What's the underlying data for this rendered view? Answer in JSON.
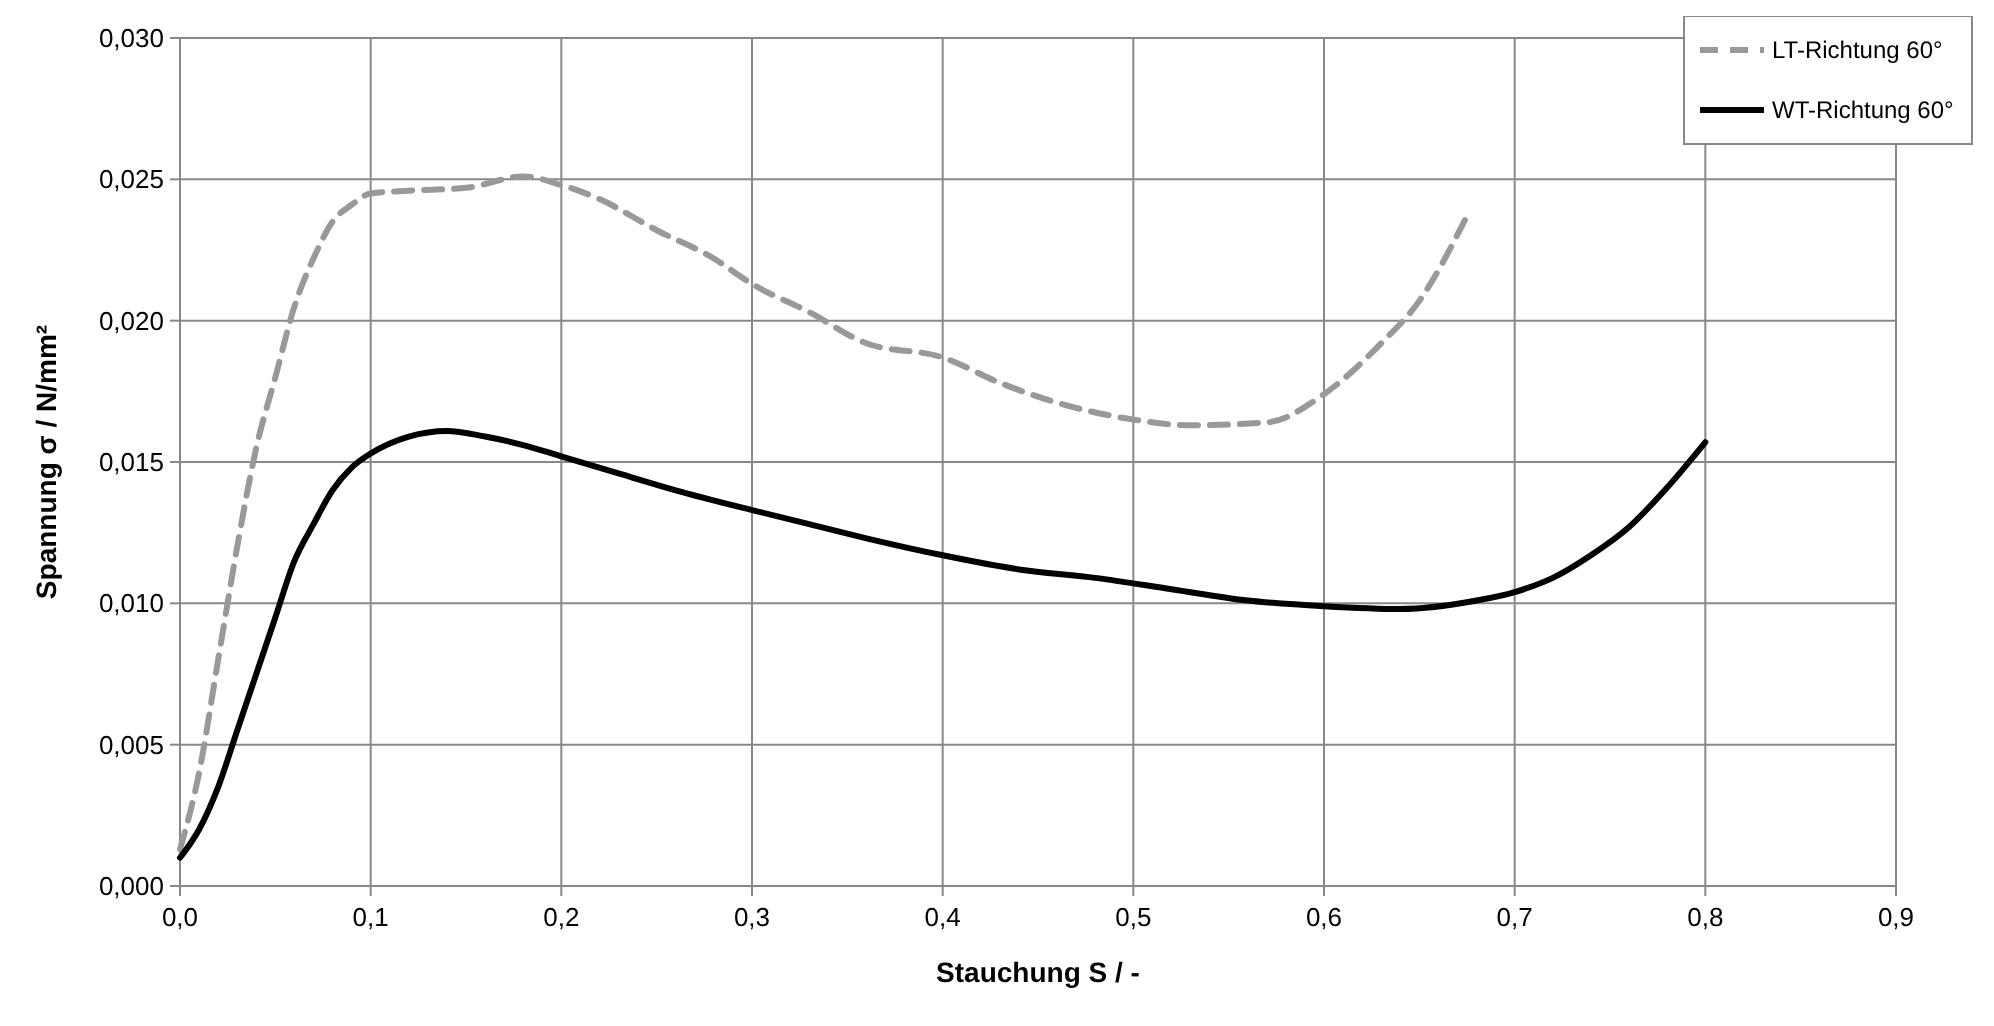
{
  "chart_data": {
    "type": "line",
    "xlabel": "Stauchung S / -",
    "ylabel": "Spannung σ / N/mm²",
    "xlim": [
      0,
      0.9
    ],
    "ylim": [
      0,
      0.03
    ],
    "xticks": [
      {
        "value": 0,
        "label": "0,0"
      },
      {
        "value": 0.1,
        "label": "0,1"
      },
      {
        "value": 0.2,
        "label": "0,2"
      },
      {
        "value": 0.3,
        "label": "0,3"
      },
      {
        "value": 0.4,
        "label": "0,4"
      },
      {
        "value": 0.5,
        "label": "0,5"
      },
      {
        "value": 0.6,
        "label": "0,6"
      },
      {
        "value": 0.7,
        "label": "0,7"
      },
      {
        "value": 0.8,
        "label": "0,8"
      },
      {
        "value": 0.9,
        "label": "0,9"
      }
    ],
    "yticks": [
      {
        "value": 0,
        "label": "0,000"
      },
      {
        "value": 0.005,
        "label": "0,005"
      },
      {
        "value": 0.01,
        "label": "0,010"
      },
      {
        "value": 0.015,
        "label": "0,015"
      },
      {
        "value": 0.02,
        "label": "0,020"
      },
      {
        "value": 0.025,
        "label": "0,025"
      },
      {
        "value": 0.03,
        "label": "0,030"
      }
    ],
    "grid": true,
    "legend": "top right",
    "series": [
      {
        "name": "LT-Richtung 60°",
        "color": "#999999",
        "line_style": "dashed",
        "x": [
          0,
          0.01,
          0.02,
          0.03,
          0.04,
          0.05,
          0.06,
          0.07,
          0.08,
          0.09,
          0.1,
          0.12,
          0.15,
          0.18,
          0.2,
          0.22,
          0.25,
          0.28,
          0.3,
          0.33,
          0.36,
          0.4,
          0.43,
          0.46,
          0.5,
          0.53,
          0.57,
          0.6,
          0.63,
          0.65,
          0.675
        ],
        "values": [
          0.0013,
          0.004,
          0.008,
          0.012,
          0.0155,
          0.018,
          0.0205,
          0.0222,
          0.0235,
          0.0241,
          0.0245,
          0.0246,
          0.0247,
          0.0251,
          0.0248,
          0.0243,
          0.0232,
          0.0222,
          0.0213,
          0.0203,
          0.0192,
          0.0187,
          0.0178,
          0.0171,
          0.0165,
          0.0163,
          0.0164,
          0.0174,
          0.0192,
          0.0207,
          0.0237
        ]
      },
      {
        "name": "WT-Richtung 60°",
        "color": "#000000",
        "line_style": "solid",
        "x": [
          0,
          0.01,
          0.02,
          0.03,
          0.04,
          0.05,
          0.06,
          0.07,
          0.08,
          0.09,
          0.1,
          0.12,
          0.14,
          0.16,
          0.18,
          0.2,
          0.23,
          0.26,
          0.3,
          0.33,
          0.36,
          0.4,
          0.44,
          0.48,
          0.52,
          0.56,
          0.6,
          0.64,
          0.68,
          0.7,
          0.72,
          0.74,
          0.76,
          0.78,
          0.8
        ],
        "values": [
          0.001,
          0.002,
          0.0035,
          0.0055,
          0.0075,
          0.0095,
          0.0115,
          0.0128,
          0.014,
          0.0148,
          0.0153,
          0.0159,
          0.0161,
          0.0159,
          0.0156,
          0.0152,
          0.0146,
          0.014,
          0.0133,
          0.0128,
          0.0123,
          0.0117,
          0.0112,
          0.0109,
          0.0105,
          0.0101,
          0.0099,
          0.0098,
          0.0101,
          0.0104,
          0.0109,
          0.0117,
          0.0127,
          0.0141,
          0.0157
        ]
      }
    ]
  }
}
